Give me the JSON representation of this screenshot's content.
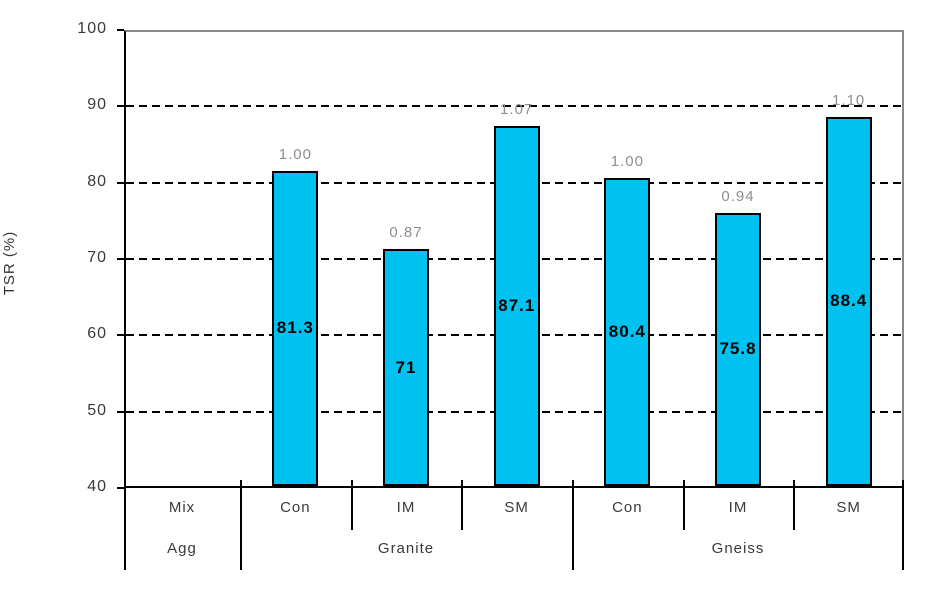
{
  "chart_data": {
    "type": "bar",
    "title": "",
    "ylabel": "TSR (%)",
    "xlabel": "",
    "ylim": [
      40,
      100
    ],
    "yticks": [
      "100",
      "90",
      "80",
      "70",
      "60",
      "50",
      "40"
    ],
    "ytick_values": [
      100,
      90,
      80,
      70,
      60,
      50,
      40
    ],
    "gridlines_at": [
      90,
      80,
      70,
      60,
      50
    ],
    "grid_style": "dashed-horizontal",
    "legend": "none",
    "axis_header_row1": "Mix",
    "axis_header_row2": "Agg",
    "categories": [
      "Con",
      "IM",
      "SM",
      "Con",
      "IM",
      "SM"
    ],
    "groups": [
      {
        "name": "Granite",
        "bars": [
          {
            "mix": "Con",
            "value": 81.3,
            "value_label": "81.3",
            "ratio_label": "1.00"
          },
          {
            "mix": "IM",
            "value": 71,
            "value_label": "71",
            "ratio_label": "0.87"
          },
          {
            "mix": "SM",
            "value": 87.1,
            "value_label": "87.1",
            "ratio_label": "1.07"
          }
        ]
      },
      {
        "name": "Gneiss",
        "bars": [
          {
            "mix": "Con",
            "value": 80.4,
            "value_label": "80.4",
            "ratio_label": "1.00"
          },
          {
            "mix": "IM",
            "value": 75.8,
            "value_label": "75.8",
            "ratio_label": "0.94"
          },
          {
            "mix": "SM",
            "value": 88.4,
            "value_label": "88.4",
            "ratio_label": "1.10"
          }
        ]
      }
    ],
    "colors": {
      "bar_fill": "#00C2F0",
      "bar_border": "#000000",
      "axis_line": "#000000",
      "plot_border_gray": "#888888",
      "ratio_label_text": "#8E8E8E",
      "axis_text": "#333333"
    }
  }
}
